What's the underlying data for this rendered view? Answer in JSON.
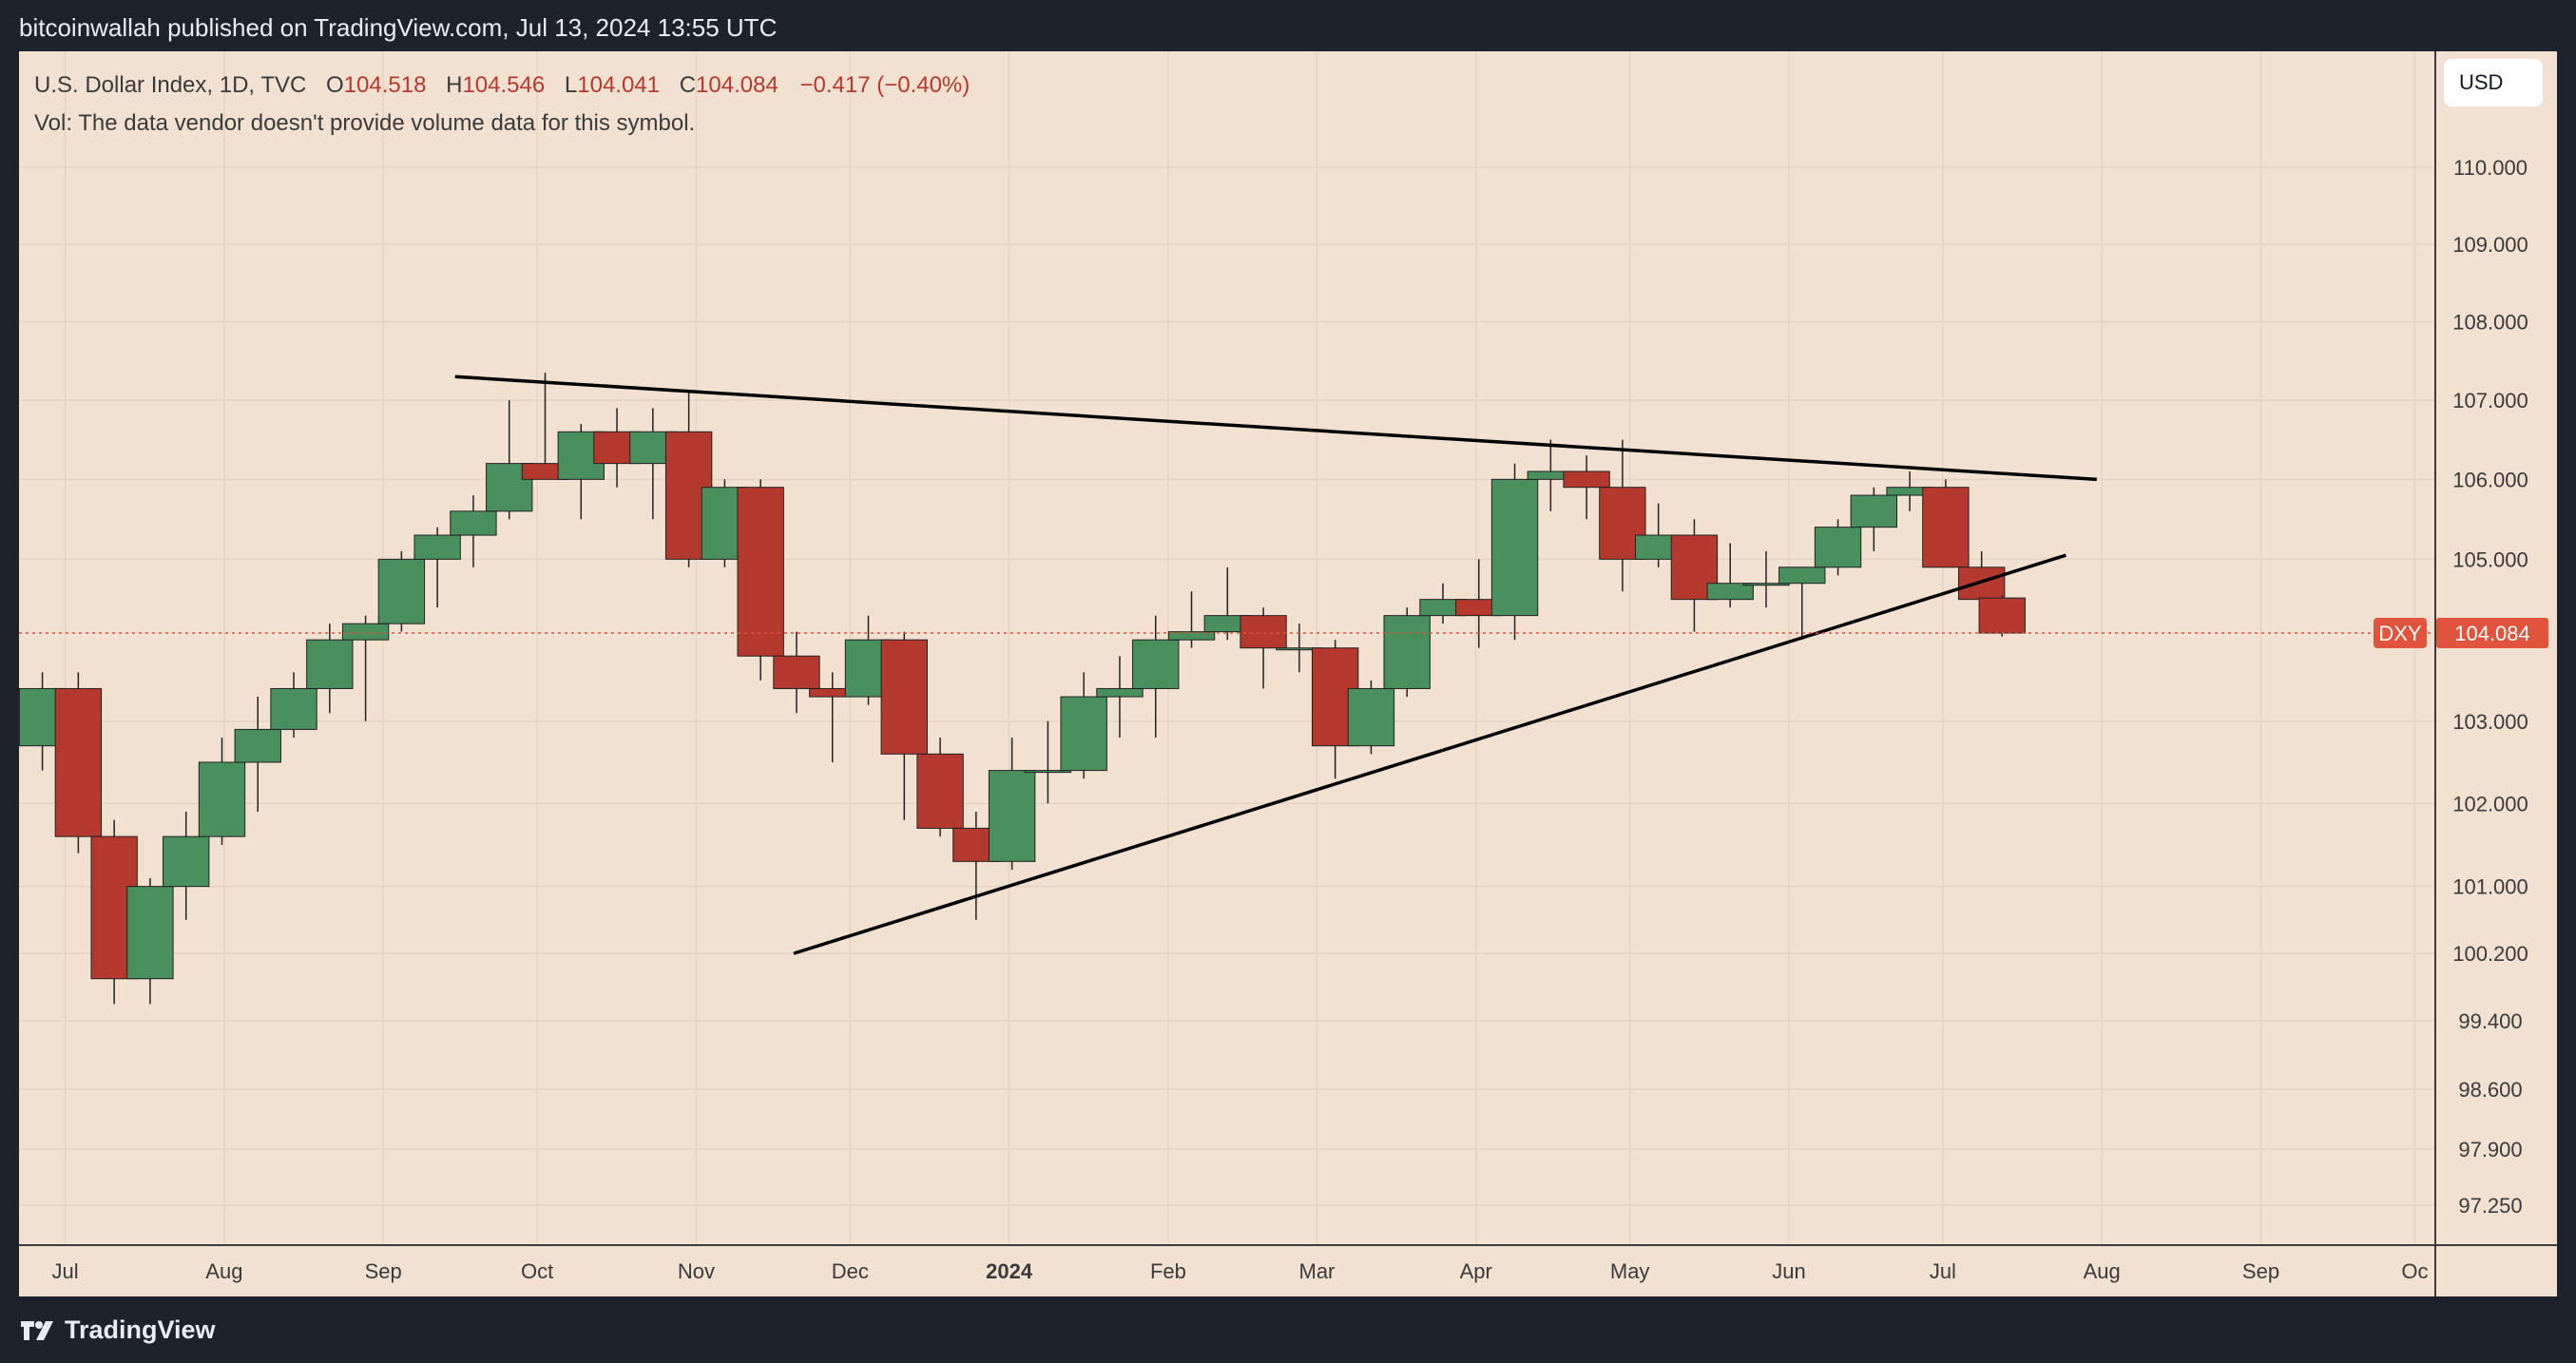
{
  "header": {
    "publisher_text": "bitcoinwallah published on TradingView.com, Jul 13, 2024 13:55 UTC"
  },
  "legend": {
    "title": "U.S. Dollar Index, 1D, TVC",
    "open_label": "O",
    "open": "104.518",
    "high_label": "H",
    "high": "104.546",
    "low_label": "L",
    "low": "104.041",
    "close_label": "C",
    "close": "104.084",
    "change": "−0.417 (−0.40%)",
    "volume_note": "Vol: The data vendor doesn't provide volume data for this symbol."
  },
  "price_axis": {
    "currency_button": "USD",
    "symbol_tag": "DXY",
    "last_price_tag": "104.084"
  },
  "footer": {
    "brand": "TradingView"
  },
  "colors": {
    "background": "#f2e1d0",
    "frame": "#1e222d",
    "up": "#4a8f5e",
    "down": "#b5392f",
    "trendline": "#000000",
    "last_price": "#e0533c"
  },
  "chart_data": {
    "type": "candlestick",
    "symbol": "DXY",
    "interval": "1D",
    "price_scale": "logarithmic",
    "y_ticks": [
      "110.000",
      "109.000",
      "108.000",
      "107.000",
      "106.000",
      "105.000",
      "103.000",
      "102.000",
      "101.000",
      "100.200",
      "99.400",
      "98.600",
      "97.900",
      "97.250"
    ],
    "x_ticks": [
      {
        "label": "Jul",
        "date": "2023-07-01"
      },
      {
        "label": "Aug",
        "date": "2023-08-01"
      },
      {
        "label": "Sep",
        "date": "2023-09-01"
      },
      {
        "label": "Oct",
        "date": "2023-10-01"
      },
      {
        "label": "Nov",
        "date": "2023-11-01"
      },
      {
        "label": "Dec",
        "date": "2023-12-01"
      },
      {
        "label": "2024",
        "date": "2024-01-01"
      },
      {
        "label": "Feb",
        "date": "2024-02-01"
      },
      {
        "label": "Mar",
        "date": "2024-03-01"
      },
      {
        "label": "Apr",
        "date": "2024-04-01"
      },
      {
        "label": "May",
        "date": "2024-05-01"
      },
      {
        "label": "Jun",
        "date": "2024-06-01"
      },
      {
        "label": "Jul",
        "date": "2024-07-01"
      },
      {
        "label": "Aug",
        "date": "2024-08-01"
      },
      {
        "label": "Sep",
        "date": "2024-09-01"
      },
      {
        "label": "Oc",
        "date": "2024-10-01"
      }
    ],
    "last_price": 104.084,
    "trendlines": [
      {
        "name": "upper",
        "start": {
          "date": "2023-09-15",
          "price": 107.3
        },
        "end": {
          "date": "2024-07-31",
          "price": 106.0
        }
      },
      {
        "name": "lower",
        "start": {
          "date": "2023-11-20",
          "price": 100.2
        },
        "end": {
          "date": "2024-07-25",
          "price": 105.05
        }
      }
    ],
    "candles": [
      {
        "d": "2023-06-26",
        "o": 102.7,
        "h": 103.6,
        "l": 102.4,
        "c": 103.4
      },
      {
        "d": "2023-07-03",
        "o": 103.4,
        "h": 103.6,
        "l": 101.4,
        "c": 101.6
      },
      {
        "d": "2023-07-10",
        "o": 101.6,
        "h": 101.8,
        "l": 99.6,
        "c": 99.9
      },
      {
        "d": "2023-07-17",
        "o": 99.9,
        "h": 101.1,
        "l": 99.6,
        "c": 101.0
      },
      {
        "d": "2023-07-24",
        "o": 101.0,
        "h": 101.9,
        "l": 100.6,
        "c": 101.6
      },
      {
        "d": "2023-07-31",
        "o": 101.6,
        "h": 102.8,
        "l": 101.5,
        "c": 102.5
      },
      {
        "d": "2023-08-07",
        "o": 102.5,
        "h": 103.3,
        "l": 101.9,
        "c": 102.9
      },
      {
        "d": "2023-08-14",
        "o": 102.9,
        "h": 103.6,
        "l": 102.8,
        "c": 103.4
      },
      {
        "d": "2023-08-21",
        "o": 103.4,
        "h": 104.2,
        "l": 103.1,
        "c": 104.0
      },
      {
        "d": "2023-08-28",
        "o": 104.0,
        "h": 104.3,
        "l": 103.0,
        "c": 104.2
      },
      {
        "d": "2023-09-04",
        "o": 104.2,
        "h": 105.1,
        "l": 104.1,
        "c": 105.0
      },
      {
        "d": "2023-09-11",
        "o": 105.0,
        "h": 105.4,
        "l": 104.4,
        "c": 105.3
      },
      {
        "d": "2023-09-18",
        "o": 105.3,
        "h": 105.8,
        "l": 104.9,
        "c": 105.6
      },
      {
        "d": "2023-09-25",
        "o": 105.6,
        "h": 107.0,
        "l": 105.5,
        "c": 106.2
      },
      {
        "d": "2023-10-02",
        "o": 106.2,
        "h": 107.35,
        "l": 106.0,
        "c": 106.0
      },
      {
        "d": "2023-10-09",
        "o": 106.0,
        "h": 106.7,
        "l": 105.5,
        "c": 106.6
      },
      {
        "d": "2023-10-16",
        "o": 106.6,
        "h": 106.9,
        "l": 105.9,
        "c": 106.2
      },
      {
        "d": "2023-10-23",
        "o": 106.2,
        "h": 106.9,
        "l": 105.5,
        "c": 106.6
      },
      {
        "d": "2023-10-30",
        "o": 106.6,
        "h": 107.1,
        "l": 104.9,
        "c": 105.0
      },
      {
        "d": "2023-11-06",
        "o": 105.0,
        "h": 106.0,
        "l": 104.9,
        "c": 105.9
      },
      {
        "d": "2023-11-13",
        "o": 105.9,
        "h": 106.0,
        "l": 103.5,
        "c": 103.8
      },
      {
        "d": "2023-11-20",
        "o": 103.8,
        "h": 104.1,
        "l": 103.1,
        "c": 103.4
      },
      {
        "d": "2023-11-27",
        "o": 103.4,
        "h": 103.6,
        "l": 102.5,
        "c": 103.3
      },
      {
        "d": "2023-12-04",
        "o": 103.3,
        "h": 104.3,
        "l": 103.2,
        "c": 104.0
      },
      {
        "d": "2023-12-11",
        "o": 104.0,
        "h": 104.1,
        "l": 101.8,
        "c": 102.6
      },
      {
        "d": "2023-12-18",
        "o": 102.6,
        "h": 102.8,
        "l": 101.6,
        "c": 101.7
      },
      {
        "d": "2023-12-25",
        "o": 101.7,
        "h": 101.9,
        "l": 100.6,
        "c": 101.3
      },
      {
        "d": "2024-01-01",
        "o": 101.3,
        "h": 102.8,
        "l": 101.2,
        "c": 102.4
      },
      {
        "d": "2024-01-08",
        "o": 102.4,
        "h": 103.0,
        "l": 102.0,
        "c": 102.4
      },
      {
        "d": "2024-01-15",
        "o": 102.4,
        "h": 103.6,
        "l": 102.3,
        "c": 103.3
      },
      {
        "d": "2024-01-22",
        "o": 103.3,
        "h": 103.8,
        "l": 102.8,
        "c": 103.4
      },
      {
        "d": "2024-01-29",
        "o": 103.4,
        "h": 104.3,
        "l": 102.8,
        "c": 104.0
      },
      {
        "d": "2024-02-05",
        "o": 104.0,
        "h": 104.6,
        "l": 103.9,
        "c": 104.1
      },
      {
        "d": "2024-02-12",
        "o": 104.1,
        "h": 104.9,
        "l": 104.0,
        "c": 104.3
      },
      {
        "d": "2024-02-19",
        "o": 104.3,
        "h": 104.4,
        "l": 103.4,
        "c": 103.9
      },
      {
        "d": "2024-02-26",
        "o": 103.9,
        "h": 104.2,
        "l": 103.6,
        "c": 103.9
      },
      {
        "d": "2024-03-04",
        "o": 103.9,
        "h": 104.0,
        "l": 102.3,
        "c": 102.7
      },
      {
        "d": "2024-03-11",
        "o": 102.7,
        "h": 103.5,
        "l": 102.6,
        "c": 103.4
      },
      {
        "d": "2024-03-18",
        "o": 103.4,
        "h": 104.4,
        "l": 103.3,
        "c": 104.3
      },
      {
        "d": "2024-03-25",
        "o": 104.3,
        "h": 104.7,
        "l": 104.2,
        "c": 104.5
      },
      {
        "d": "2024-04-01",
        "o": 104.5,
        "h": 105.0,
        "l": 103.9,
        "c": 104.3
      },
      {
        "d": "2024-04-08",
        "o": 104.3,
        "h": 106.2,
        "l": 104.0,
        "c": 106.0
      },
      {
        "d": "2024-04-15",
        "o": 106.0,
        "h": 106.5,
        "l": 105.6,
        "c": 106.1
      },
      {
        "d": "2024-04-22",
        "o": 106.1,
        "h": 106.3,
        "l": 105.5,
        "c": 105.9
      },
      {
        "d": "2024-04-29",
        "o": 105.9,
        "h": 106.5,
        "l": 104.6,
        "c": 105.0
      },
      {
        "d": "2024-05-06",
        "o": 105.0,
        "h": 105.7,
        "l": 104.9,
        "c": 105.3
      },
      {
        "d": "2024-05-13",
        "o": 105.3,
        "h": 105.5,
        "l": 104.1,
        "c": 104.5
      },
      {
        "d": "2024-05-20",
        "o": 104.5,
        "h": 105.2,
        "l": 104.4,
        "c": 104.7
      },
      {
        "d": "2024-05-27",
        "o": 104.7,
        "h": 105.1,
        "l": 104.4,
        "c": 104.7
      },
      {
        "d": "2024-06-03",
        "o": 104.7,
        "h": 104.9,
        "l": 104.0,
        "c": 104.9
      },
      {
        "d": "2024-06-10",
        "o": 104.9,
        "h": 105.5,
        "l": 104.8,
        "c": 105.4
      },
      {
        "d": "2024-06-17",
        "o": 105.4,
        "h": 105.9,
        "l": 105.1,
        "c": 105.8
      },
      {
        "d": "2024-06-24",
        "o": 105.8,
        "h": 106.1,
        "l": 105.6,
        "c": 105.9
      },
      {
        "d": "2024-07-01",
        "o": 105.9,
        "h": 106.0,
        "l": 104.9,
        "c": 104.9
      },
      {
        "d": "2024-07-08",
        "o": 104.9,
        "h": 105.1,
        "l": 104.3,
        "c": 104.5
      },
      {
        "d": "2024-07-12",
        "o": 104.518,
        "h": 104.546,
        "l": 104.041,
        "c": 104.084
      }
    ]
  }
}
